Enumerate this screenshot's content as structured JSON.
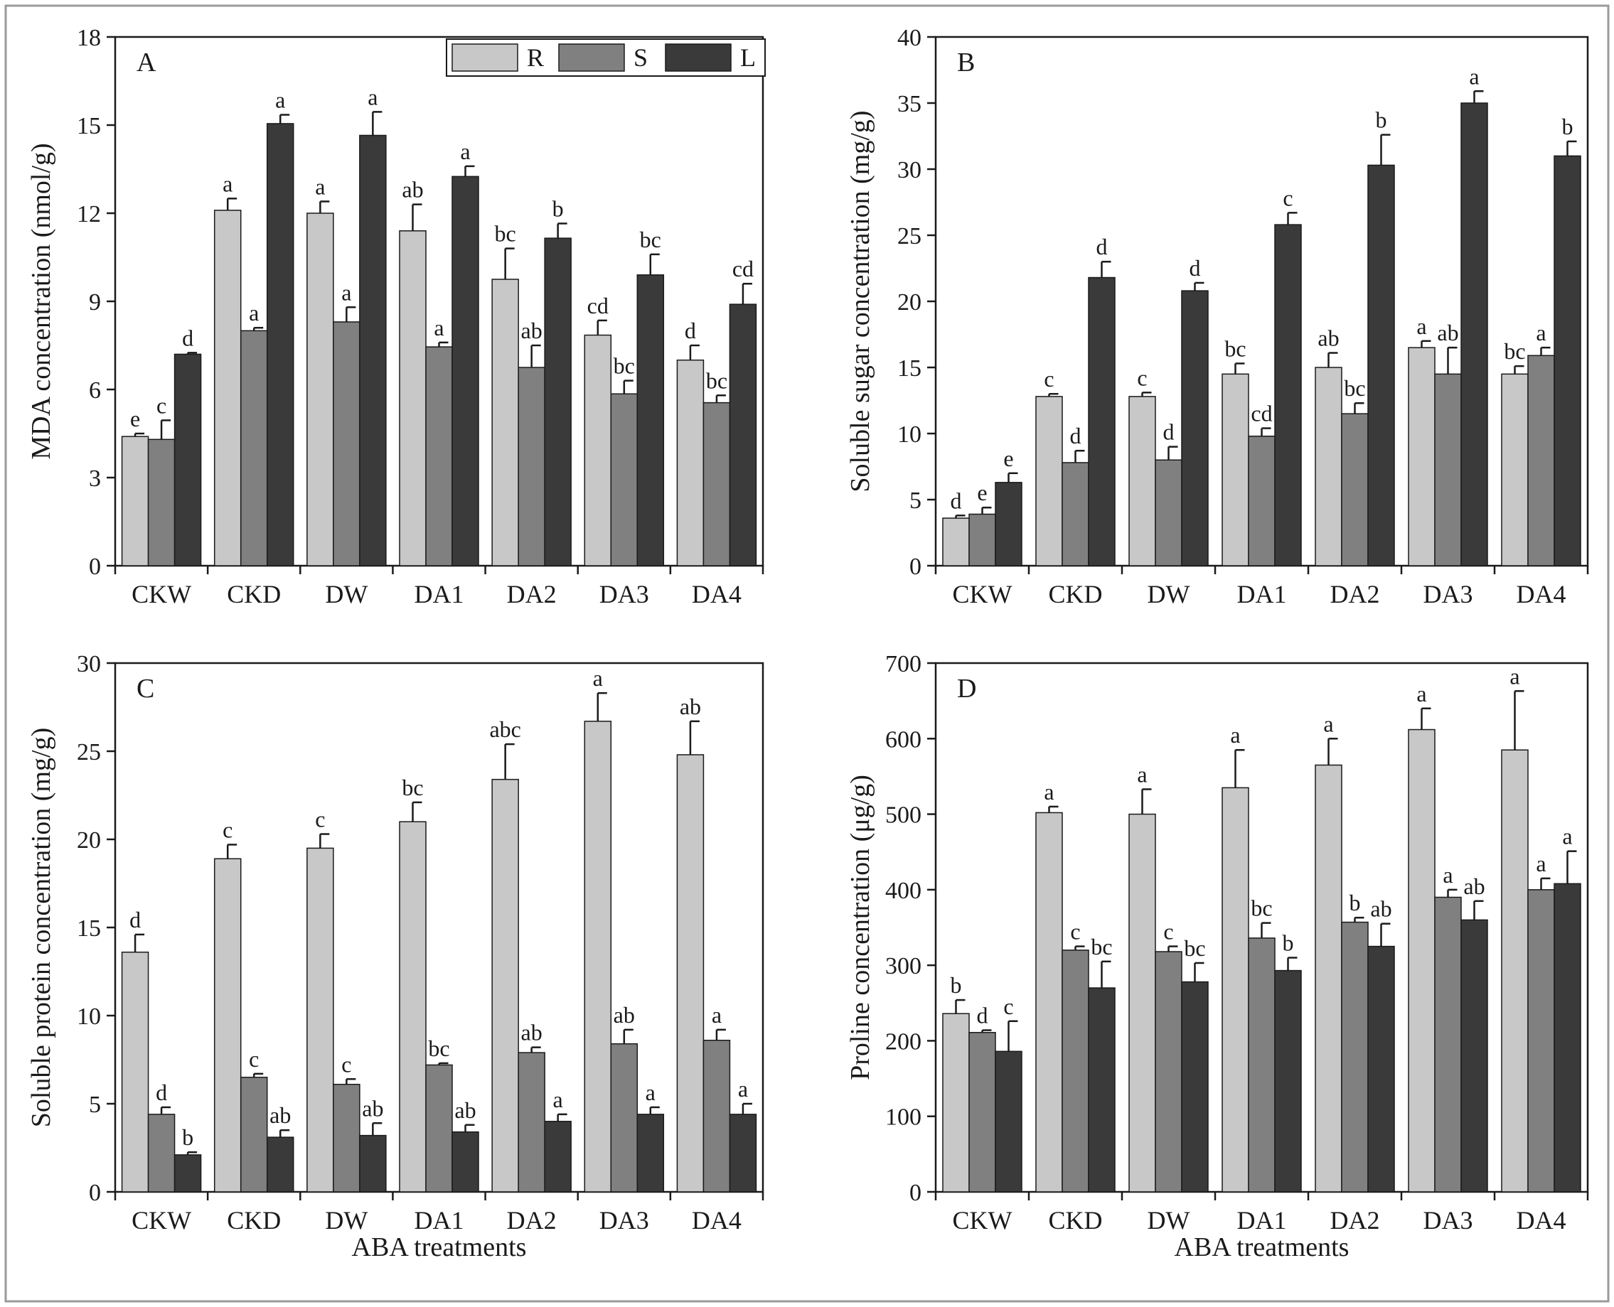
{
  "colors": {
    "R": "#c8c8c8",
    "S": "#808080",
    "L": "#3a3a3a",
    "axis": "#1a1a1a",
    "frame": "#9a9a9a"
  },
  "legend": [
    "R",
    "S",
    "L"
  ],
  "chart_data": [
    {
      "id": "A",
      "type": "bar",
      "panel_label": "A",
      "xlabel": "",
      "ylabel": "MDA concentration (nmol/g)",
      "ylim": [
        0,
        18
      ],
      "yticks": [
        "0",
        "3",
        "6",
        "9",
        "12",
        "15",
        "18"
      ],
      "categories": [
        "CKW",
        "CKD",
        "DW",
        "DA1",
        "DA2",
        "DA3",
        "DA4"
      ],
      "show_legend": true,
      "series": [
        {
          "name": "R",
          "values": [
            4.4,
            12.1,
            12.0,
            11.4,
            9.75,
            7.85,
            7.0
          ],
          "errors": [
            0.1,
            0.4,
            0.4,
            0.9,
            1.05,
            0.5,
            0.5
          ],
          "labels": [
            "e",
            "a",
            "a",
            "ab",
            "bc",
            "cd",
            "d"
          ]
        },
        {
          "name": "S",
          "values": [
            4.3,
            8.0,
            8.3,
            7.45,
            6.75,
            5.85,
            5.55
          ],
          "errors": [
            0.65,
            0.1,
            0.5,
            0.15,
            0.75,
            0.45,
            0.25
          ],
          "labels": [
            "c",
            "a",
            "a",
            "a",
            "ab",
            "bc",
            "bc"
          ]
        },
        {
          "name": "L",
          "values": [
            7.2,
            15.05,
            14.65,
            13.25,
            11.15,
            9.9,
            8.9
          ],
          "errors": [
            0.05,
            0.3,
            0.8,
            0.35,
            0.5,
            0.7,
            0.7
          ],
          "labels": [
            "d",
            "a",
            "a",
            "a",
            "b",
            "bc",
            "cd"
          ]
        }
      ]
    },
    {
      "id": "B",
      "type": "bar",
      "panel_label": "B",
      "xlabel": "",
      "ylabel": "Soluble sugar concentration (mg/g)",
      "ylim": [
        0,
        40
      ],
      "yticks": [
        "0",
        "5",
        "10",
        "15",
        "20",
        "25",
        "30",
        "35",
        "40"
      ],
      "categories": [
        "CKW",
        "CKD",
        "DW",
        "DA1",
        "DA2",
        "DA3",
        "DA4"
      ],
      "show_legend": false,
      "series": [
        {
          "name": "R",
          "values": [
            3.6,
            12.8,
            12.8,
            14.5,
            15.0,
            16.5,
            14.5
          ],
          "errors": [
            0.2,
            0.2,
            0.3,
            0.8,
            1.1,
            0.5,
            0.6
          ],
          "labels": [
            "d",
            "c",
            "c",
            "bc",
            "ab",
            "a",
            "bc"
          ]
        },
        {
          "name": "S",
          "values": [
            3.9,
            7.8,
            8.0,
            9.8,
            11.5,
            14.5,
            15.9
          ],
          "errors": [
            0.5,
            0.9,
            1.0,
            0.6,
            0.8,
            2.0,
            0.6
          ],
          "labels": [
            "e",
            "d",
            "d",
            "cd",
            "bc",
            "ab",
            "a"
          ]
        },
        {
          "name": "L",
          "values": [
            6.3,
            21.8,
            20.8,
            25.8,
            30.3,
            35.0,
            31.0
          ],
          "errors": [
            0.7,
            1.2,
            0.6,
            0.9,
            2.3,
            0.9,
            1.1
          ],
          "labels": [
            "e",
            "d",
            "d",
            "c",
            "b",
            "a",
            "b"
          ]
        }
      ]
    },
    {
      "id": "C",
      "type": "bar",
      "panel_label": "C",
      "xlabel": "ABA treatments",
      "ylabel": "Soluble protein concentration (mg/g)",
      "ylim": [
        0,
        30
      ],
      "yticks": [
        "0",
        "5",
        "10",
        "15",
        "20",
        "25",
        "30"
      ],
      "categories": [
        "CKW",
        "CKD",
        "DW",
        "DA1",
        "DA2",
        "DA3",
        "DA4"
      ],
      "show_legend": false,
      "series": [
        {
          "name": "R",
          "values": [
            13.6,
            18.9,
            19.5,
            21.0,
            23.4,
            26.7,
            24.8
          ],
          "errors": [
            1.0,
            0.8,
            0.8,
            1.1,
            2.0,
            1.6,
            1.9
          ],
          "labels": [
            "d",
            "c",
            "c",
            "bc",
            "abc",
            "a",
            "ab"
          ]
        },
        {
          "name": "S",
          "values": [
            4.4,
            6.5,
            6.1,
            7.2,
            7.9,
            8.4,
            8.6
          ],
          "errors": [
            0.4,
            0.2,
            0.3,
            0.1,
            0.3,
            0.8,
            0.6
          ],
          "labels": [
            "d",
            "c",
            "c",
            "bc",
            "ab",
            "ab",
            "a"
          ]
        },
        {
          "name": "L",
          "values": [
            2.1,
            3.1,
            3.2,
            3.4,
            4.0,
            4.4,
            4.4
          ],
          "errors": [
            0.15,
            0.4,
            0.7,
            0.4,
            0.4,
            0.4,
            0.6
          ],
          "labels": [
            "b",
            "ab",
            "ab",
            "ab",
            "a",
            "a",
            "a"
          ]
        }
      ]
    },
    {
      "id": "D",
      "type": "bar",
      "panel_label": "D",
      "xlabel": "ABA treatments",
      "ylabel": "Proline concentration (μg/g)",
      "ylim": [
        0,
        700
      ],
      "yticks": [
        "0",
        "100",
        "200",
        "300",
        "400",
        "500",
        "600",
        "700"
      ],
      "categories": [
        "CKW",
        "CKD",
        "DW",
        "DA1",
        "DA2",
        "DA3",
        "DA4"
      ],
      "show_legend": false,
      "series": [
        {
          "name": "R",
          "values": [
            236,
            502,
            500,
            535,
            565,
            612,
            585
          ],
          "errors": [
            18,
            8,
            33,
            50,
            35,
            28,
            78
          ],
          "labels": [
            "b",
            "a",
            "a",
            "a",
            "a",
            "a",
            "a"
          ]
        },
        {
          "name": "S",
          "values": [
            211,
            320,
            318,
            336,
            357,
            390,
            400
          ],
          "errors": [
            3,
            5,
            7,
            20,
            6,
            10,
            15
          ],
          "labels": [
            "d",
            "c",
            "c",
            "bc",
            "b",
            "a",
            "a"
          ]
        },
        {
          "name": "L",
          "values": [
            186,
            270,
            278,
            293,
            325,
            360,
            408
          ],
          "errors": [
            40,
            35,
            25,
            17,
            30,
            25,
            43
          ],
          "labels": [
            "c",
            "bc",
            "bc",
            "b",
            "ab",
            "ab",
            "a"
          ]
        }
      ]
    }
  ]
}
